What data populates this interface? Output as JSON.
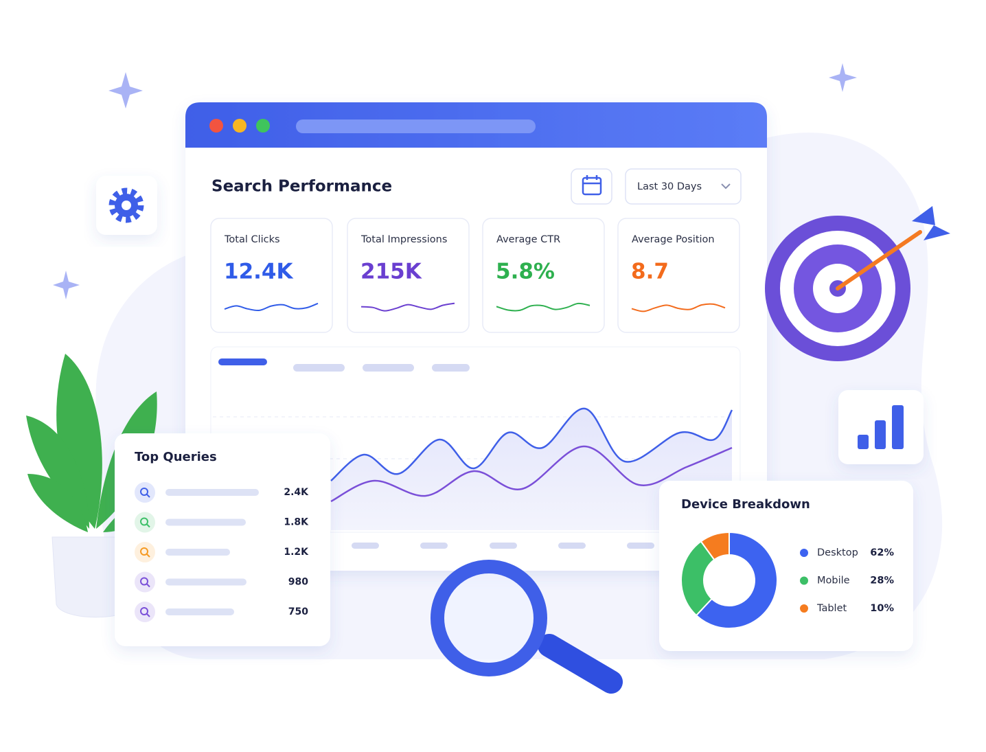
{
  "header": {
    "title": "Search Performance",
    "date_range": "Last 30 Days"
  },
  "metrics": [
    {
      "label": "Total Clicks",
      "value": "12.4K"
    },
    {
      "label": "Total Impressions",
      "value": "215K"
    },
    {
      "label": "Average CTR",
      "value": "5.8%"
    },
    {
      "label": "Average Position",
      "value": "8.7"
    }
  ],
  "top_queries": {
    "title": "Top Queries",
    "values": [
      "2.4K",
      "1.8K",
      "1.2K",
      "980",
      "750"
    ]
  },
  "device_breakdown": {
    "title": "Device Breakdown",
    "items": [
      {
        "name": "Desktop",
        "value": 62,
        "label": "62%",
        "color": "#3d63f0"
      },
      {
        "name": "Mobile",
        "value": 28,
        "label": "28%",
        "color": "#3cbf67"
      },
      {
        "name": "Tablet",
        "value": 10,
        "label": "10%",
        "color": "#f57c1f"
      }
    ]
  }
}
